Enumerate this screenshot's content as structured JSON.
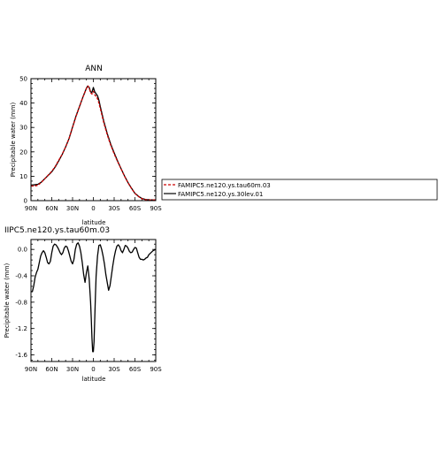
{
  "chart_data": [
    {
      "type": "line",
      "title": "ANN",
      "xlabel": "latitude",
      "ylabel": "Precipitable water (mm)",
      "xlim": [
        90,
        -90
      ],
      "ylim": [
        0,
        50
      ],
      "xtick_values": [
        90,
        60,
        30,
        0,
        -30,
        -60,
        -90
      ],
      "xtick_labels": [
        "90N",
        "60N",
        "30N",
        "0",
        "30S",
        "60S",
        "90S"
      ],
      "ytick_values": [
        0,
        10,
        20,
        30,
        40,
        50
      ],
      "ytick_labels": [
        "0",
        "10",
        "20",
        "30",
        "40",
        "50"
      ],
      "legend_position": "right",
      "series": [
        {
          "name": "FAMIPC5.ne120.ys.tau60m.03",
          "color": "#cc0000",
          "dash": "dashed",
          "x": [
            90,
            85,
            80,
            75,
            70,
            65,
            60,
            55,
            50,
            45,
            40,
            35,
            30,
            25,
            20,
            15,
            10,
            8,
            6,
            4,
            2,
            0,
            -2,
            -4,
            -6,
            -8,
            -10,
            -15,
            -20,
            -25,
            -30,
            -35,
            -40,
            -45,
            -50,
            -55,
            -60,
            -65,
            -70,
            -75,
            -80,
            -85,
            -90
          ],
          "y": [
            6.0,
            6.0,
            6.3,
            7.5,
            9.0,
            10.5,
            12.0,
            14.0,
            16.5,
            19.0,
            22.0,
            25.5,
            30.0,
            34.5,
            38.5,
            42.5,
            46.0,
            47.0,
            46.2,
            44.2,
            43.7,
            44.8,
            43.4,
            42.7,
            41.8,
            40.0,
            37.8,
            32.0,
            27.0,
            22.8,
            19.2,
            16.0,
            13.0,
            10.0,
            7.3,
            5.0,
            3.0,
            1.7,
            0.8,
            0.4,
            0.3,
            0.3,
            0.3
          ]
        },
        {
          "name": "FAMIPC5.ne120.ys.30lev.01",
          "color": "#000000",
          "dash": "solid",
          "x": [
            90,
            85,
            80,
            75,
            70,
            65,
            60,
            55,
            50,
            45,
            40,
            35,
            30,
            25,
            20,
            15,
            10,
            8,
            6,
            4,
            2,
            0,
            -2,
            -4,
            -6,
            -8,
            -10,
            -15,
            -20,
            -25,
            -30,
            -35,
            -40,
            -45,
            -50,
            -55,
            -60,
            -65,
            -70,
            -75,
            -80,
            -85,
            -90
          ],
          "y": [
            6.4,
            6.5,
            6.7,
            7.6,
            9.0,
            10.4,
            11.8,
            13.8,
            16.3,
            18.9,
            22.0,
            25.5,
            30.2,
            34.7,
            38.6,
            42.5,
            46.1,
            47.0,
            46.4,
            44.6,
            44.4,
            46.4,
            44.6,
            43.8,
            43.0,
            41.2,
            38.6,
            32.6,
            27.5,
            23.2,
            19.6,
            16.2,
            13.1,
            10.1,
            7.4,
            5.1,
            3.0,
            1.8,
            0.9,
            0.5,
            0.3,
            0.3,
            0.3
          ]
        }
      ]
    },
    {
      "type": "line",
      "title": "IIPC5.ne120.ys.tau60m.03",
      "xlabel": "latitude",
      "ylabel": "Precipitable water (mm)",
      "xlim": [
        90,
        -90
      ],
      "ylim": [
        -1.7,
        0.15
      ],
      "xtick_values": [
        90,
        60,
        30,
        0,
        -30,
        -60,
        -90
      ],
      "xtick_labels": [
        "90N",
        "60N",
        "30N",
        "0",
        "30S",
        "60S",
        "90S"
      ],
      "ytick_values": [
        0.0,
        -0.4,
        -0.8,
        -1.2,
        -1.6
      ],
      "ytick_labels": [
        "0.0",
        "-0.4",
        "-0.8",
        "-1.2",
        "-1.6"
      ],
      "series": [
        {
          "color": "#000000",
          "dash": "solid",
          "x": [
            90,
            88,
            86,
            84,
            82,
            80,
            78,
            76,
            74,
            72,
            70,
            68,
            66,
            64,
            62,
            60,
            58,
            56,
            54,
            52,
            50,
            48,
            46,
            44,
            42,
            40,
            38,
            36,
            34,
            32,
            30,
            28,
            26,
            24,
            22,
            20,
            18,
            16,
            14,
            12,
            10,
            8,
            6,
            4,
            3,
            2,
            1,
            0,
            -1,
            -2,
            -3,
            -4,
            -6,
            -8,
            -10,
            -12,
            -14,
            -16,
            -18,
            -20,
            -22,
            -24,
            -26,
            -28,
            -30,
            -32,
            -34,
            -36,
            -38,
            -40,
            -42,
            -44,
            -46,
            -48,
            -50,
            -52,
            -54,
            -56,
            -58,
            -60,
            -62,
            -64,
            -66,
            -68,
            -70,
            -72,
            -74,
            -76,
            -78,
            -80,
            -82,
            -84,
            -86,
            -88,
            -90
          ],
          "y": [
            -0.64,
            -0.64,
            -0.55,
            -0.42,
            -0.35,
            -0.3,
            -0.2,
            -0.1,
            -0.05,
            -0.02,
            -0.05,
            -0.12,
            -0.2,
            -0.22,
            -0.18,
            -0.05,
            0.05,
            0.08,
            0.07,
            0.04,
            0.0,
            -0.05,
            -0.08,
            -0.05,
            0.02,
            0.05,
            0.04,
            -0.02,
            -0.1,
            -0.18,
            -0.22,
            -0.15,
            0.0,
            0.08,
            0.1,
            0.05,
            -0.05,
            -0.2,
            -0.38,
            -0.5,
            -0.35,
            -0.25,
            -0.45,
            -0.8,
            -1.05,
            -1.35,
            -1.55,
            -1.55,
            -1.4,
            -1.05,
            -0.7,
            -0.4,
            -0.1,
            0.06,
            0.07,
            0.0,
            -0.1,
            -0.22,
            -0.38,
            -0.5,
            -0.62,
            -0.55,
            -0.4,
            -0.25,
            -0.12,
            -0.02,
            0.05,
            0.07,
            0.04,
            -0.02,
            -0.05,
            0.0,
            0.06,
            0.05,
            0.02,
            -0.03,
            -0.05,
            -0.04,
            0.0,
            0.03,
            0.02,
            -0.05,
            -0.12,
            -0.15,
            -0.15,
            -0.16,
            -0.15,
            -0.13,
            -0.12,
            -0.08,
            -0.06,
            -0.04,
            -0.02,
            -0.01,
            0.0
          ]
        }
      ]
    }
  ]
}
